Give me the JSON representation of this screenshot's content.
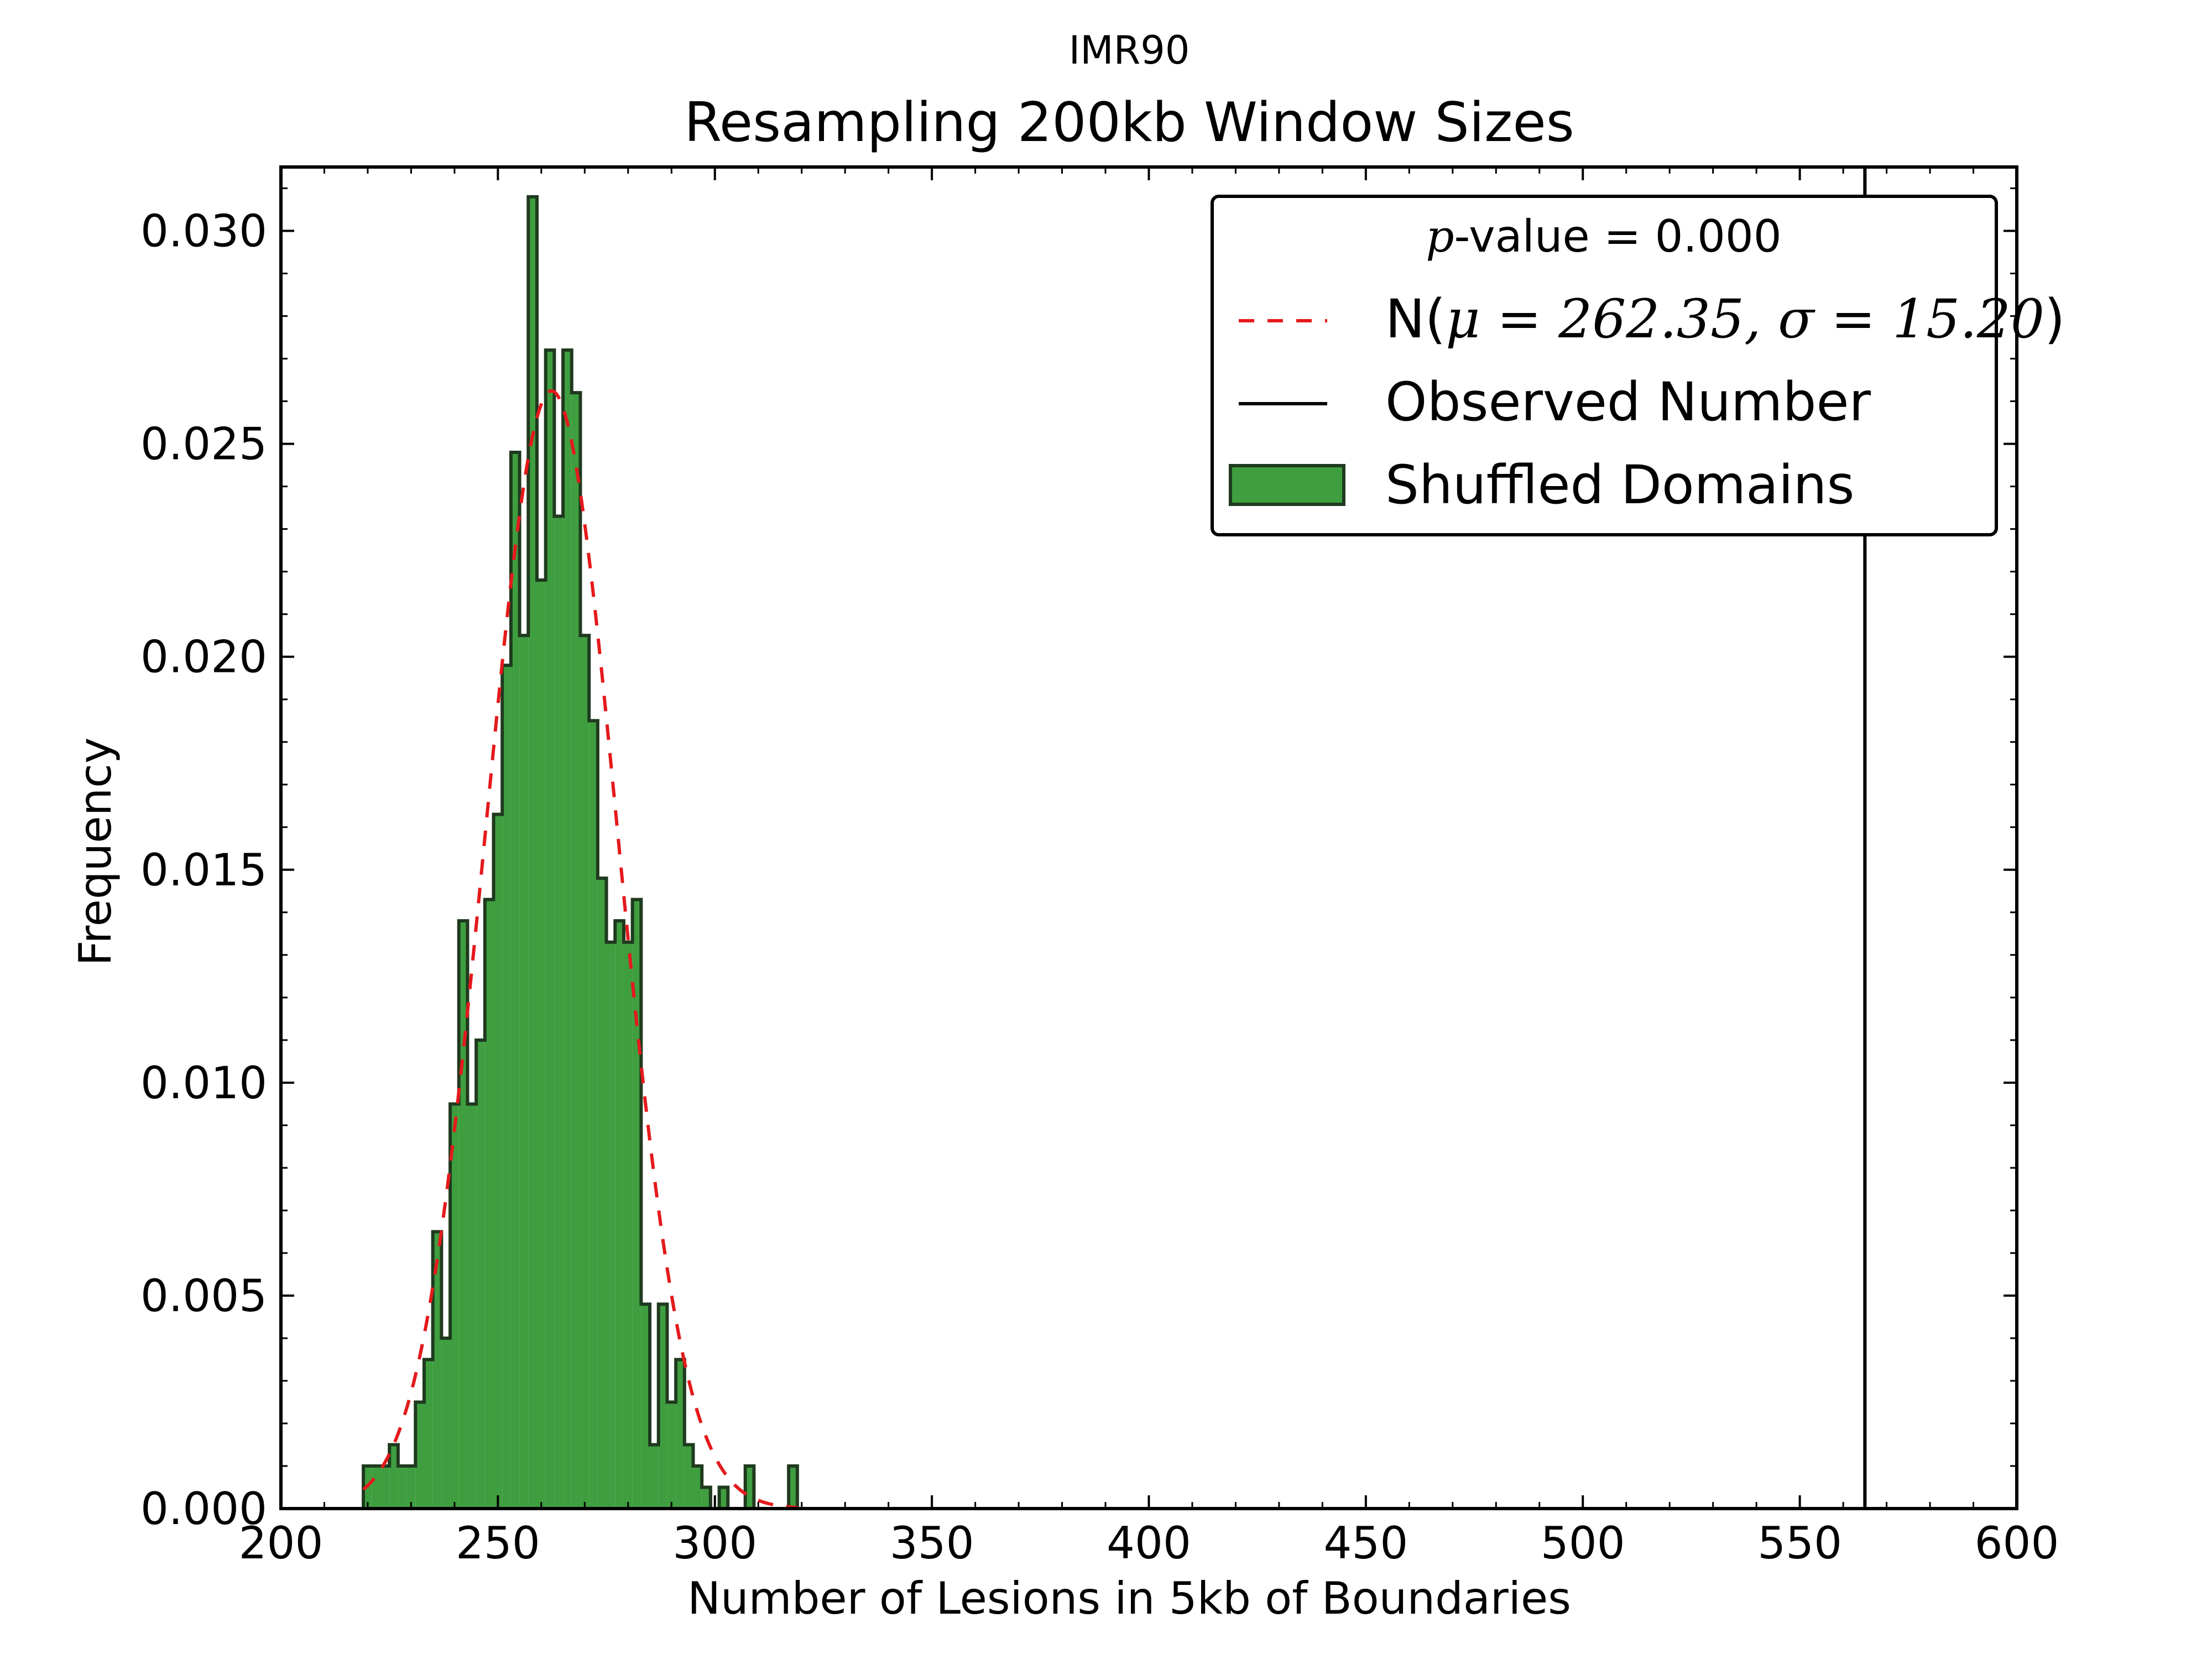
{
  "chart_data": {
    "type": "histogram",
    "suptitle": "IMR90",
    "title": "Resampling 200kb Window Sizes",
    "xlabel": "Number of Lesions in 5kb of Boundaries",
    "ylabel": "Frequency",
    "xlim": [
      200,
      600
    ],
    "ylim": [
      0,
      0.0315
    ],
    "xticks": [
      200,
      250,
      300,
      350,
      400,
      450,
      500,
      550,
      600
    ],
    "xtick_labels": [
      "200",
      "250",
      "300",
      "350",
      "400",
      "450",
      "500",
      "550",
      "600"
    ],
    "yticks": [
      0.0,
      0.005,
      0.01,
      0.015,
      0.02,
      0.025,
      0.03
    ],
    "ytick_labels": [
      "0.000",
      "0.005",
      "0.010",
      "0.015",
      "0.020",
      "0.025",
      "0.030"
    ],
    "bin_width": 2,
    "bin_start": 219,
    "bin_values": [
      0.001,
      0.001,
      0.001,
      0.0015,
      0.001,
      0.001,
      0.0025,
      0.0035,
      0.0065,
      0.004,
      0.0095,
      0.0138,
      0.0095,
      0.011,
      0.0143,
      0.0163,
      0.0198,
      0.0248,
      0.0205,
      0.0308,
      0.0218,
      0.0272,
      0.0233,
      0.0272,
      0.0262,
      0.0205,
      0.0185,
      0.0148,
      0.0133,
      0.0138,
      0.0133,
      0.0143,
      0.0048,
      0.0015,
      0.0048,
      0.0025,
      0.0035,
      0.0015,
      0.001,
      0.0005,
      0.0,
      0.0005,
      0.0,
      0.0,
      0.001,
      0.0,
      0.0,
      0.0,
      0.0,
      0.001
    ],
    "series": [
      {
        "name": "Shuffled Domains",
        "kind": "histogram",
        "color": "#3f9e3f",
        "edgecolor": "#1f3a1f"
      },
      {
        "name": "N(μ = 262.35, σ = 15.20)",
        "kind": "normal_pdf",
        "mu": 262.35,
        "sigma": 15.2,
        "color": "#e41a1c"
      },
      {
        "name": "Observed Number",
        "kind": "vline",
        "x": 565,
        "color": "#000000"
      }
    ],
    "legend": {
      "placement": "top-right",
      "pvalue_prefix": "p",
      "pvalue_text": "-value = 0.000",
      "normal_label_prefix": "N(",
      "normal_label_math": "μ = 262.35, σ = 15.20",
      "normal_label_suffix": ")",
      "observed_label": "Observed Number",
      "shuffled_label": "Shuffled Domains"
    }
  }
}
